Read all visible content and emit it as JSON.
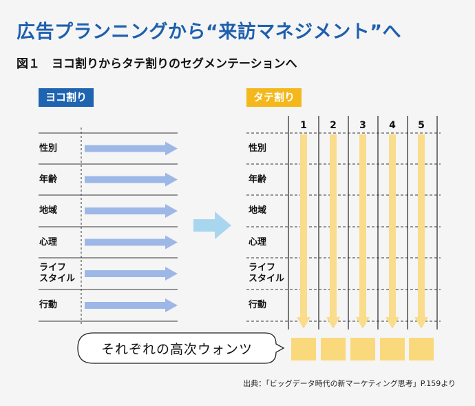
{
  "title": "広告プランニングから“来訪マネジメント”へ",
  "subtitle": "図１　ヨコ割りからタテ割りのセグメンテーションへ",
  "left_panel": {
    "badge": "ヨコ割り"
  },
  "right_panel": {
    "badge": "タテ割り",
    "columns": [
      "1",
      "2",
      "3",
      "4",
      "5"
    ]
  },
  "rows": [
    {
      "line1": "性別",
      "line2": ""
    },
    {
      "line1": "年齢",
      "line2": ""
    },
    {
      "line1": "地域",
      "line2": ""
    },
    {
      "line1": "心理",
      "line2": ""
    },
    {
      "line1": "ライフ",
      "line2": "スタイル"
    },
    {
      "line1": "行動",
      "line2": ""
    }
  ],
  "caption": "それぞれの高次ウォンツ",
  "source": "出典：「ビッグデータ時代の新マーケティング思考」P.159より",
  "colors": {
    "title_blue": "#1e5fae",
    "badge_blue": "#1e64b0",
    "badge_yellow": "#f4b81d",
    "arrow_blue": "#9db7e6",
    "arrow_light": "#a9d6ef",
    "arrow_yellow": "#f9dc8c",
    "box_yellow": "#fad97c"
  }
}
